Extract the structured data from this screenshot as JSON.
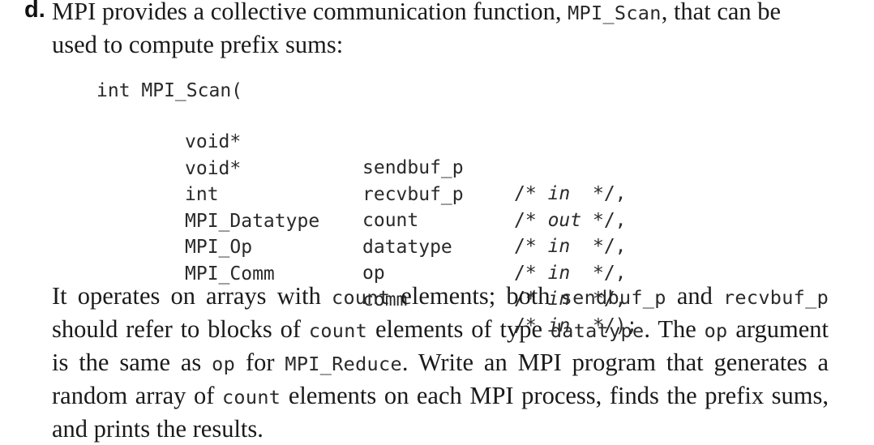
{
  "label": "d.",
  "intro": {
    "t1": "MPI provides a collective communication function,",
    "c1": "MPI_Scan",
    "t2": ", that can be used to compute prefix sums:"
  },
  "signature": {
    "head": "int MPI_Scan(",
    "params": [
      {
        "type": "void*",
        "name": "sendbuf_p",
        "comment_open": "/*",
        "direction": "in",
        "comment_close": "*/,"
      },
      {
        "type": "void*",
        "name": "recvbuf_p",
        "comment_open": "/*",
        "direction": "out",
        "comment_close": "*/,"
      },
      {
        "type": "int",
        "name": "count",
        "comment_open": "/*",
        "direction": "in",
        "comment_close": "*/,"
      },
      {
        "type": "MPI_Datatype",
        "name": "datatype",
        "comment_open": "/*",
        "direction": "in",
        "comment_close": "*/,"
      },
      {
        "type": "MPI_Op",
        "name": "op",
        "comment_open": "/*",
        "direction": "in",
        "comment_close": "*/,"
      },
      {
        "type": "MPI_Comm",
        "name": "comm",
        "comment_open": "/*",
        "direction": "in",
        "comment_close": "*/);"
      }
    ]
  },
  "body": {
    "t1": "It operates on arrays with",
    "c1": "count",
    "t2": "elements; both",
    "c2": "sendbuf_p",
    "t3": "and",
    "c3": "recvbuf_p",
    "t4": "should refer to blocks of",
    "c4": "count",
    "t5": "elements of type",
    "c5": "datatype",
    "t6": ". The",
    "c6": "op",
    "t7": "argument is the same as",
    "c7": "op",
    "t8": "for",
    "c8": "MPI_Reduce",
    "t9": ". Write an MPI program that generates a random array of",
    "c9": "count",
    "t10": "elements on each MPI process, finds the prefix sums, and prints the results."
  }
}
